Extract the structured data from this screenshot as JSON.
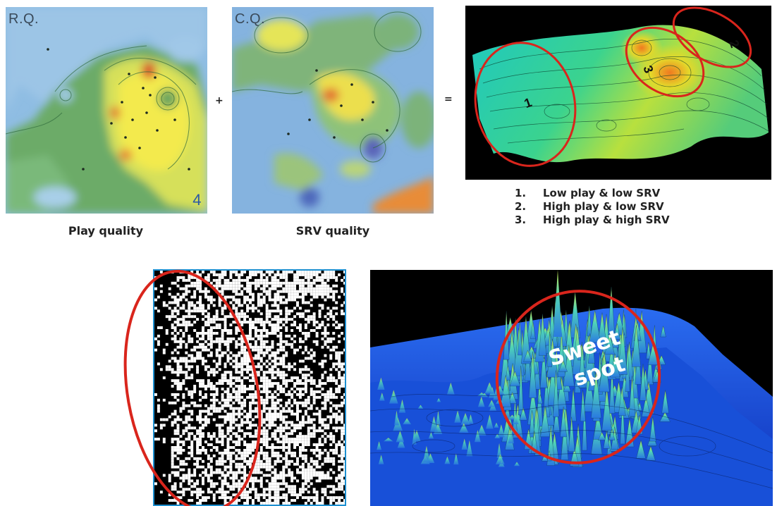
{
  "panels": {
    "play_map": {
      "label": "R.Q.",
      "corner_number": "4",
      "caption": "Play quality"
    },
    "srv_map": {
      "label": "C.Q.",
      "caption": "SRV quality"
    },
    "combined": {
      "region_labels": [
        "1",
        "2",
        "3"
      ],
      "legend": [
        {
          "num": "1.",
          "text": "Low play & low SRV"
        },
        {
          "num": "2.",
          "text": "High play & low SRV"
        },
        {
          "num": "3.",
          "text": "High play & high SRV"
        }
      ]
    },
    "sweet_spot": {
      "line1": "Sweet",
      "line2": "spot"
    }
  },
  "operators": {
    "plus": "+",
    "equals": "="
  },
  "colors": {
    "highlight_ellipse": "#d9251c",
    "heatmap_low": "#7fb2e0",
    "heatmap_mid": "#5fa657",
    "heatmap_high": "#f1e84a",
    "heatmap_peak": "#d93a1a",
    "surface_background": "#000000",
    "surface_teal": "#1fc8c0",
    "surface_blue": "#1440d8"
  }
}
